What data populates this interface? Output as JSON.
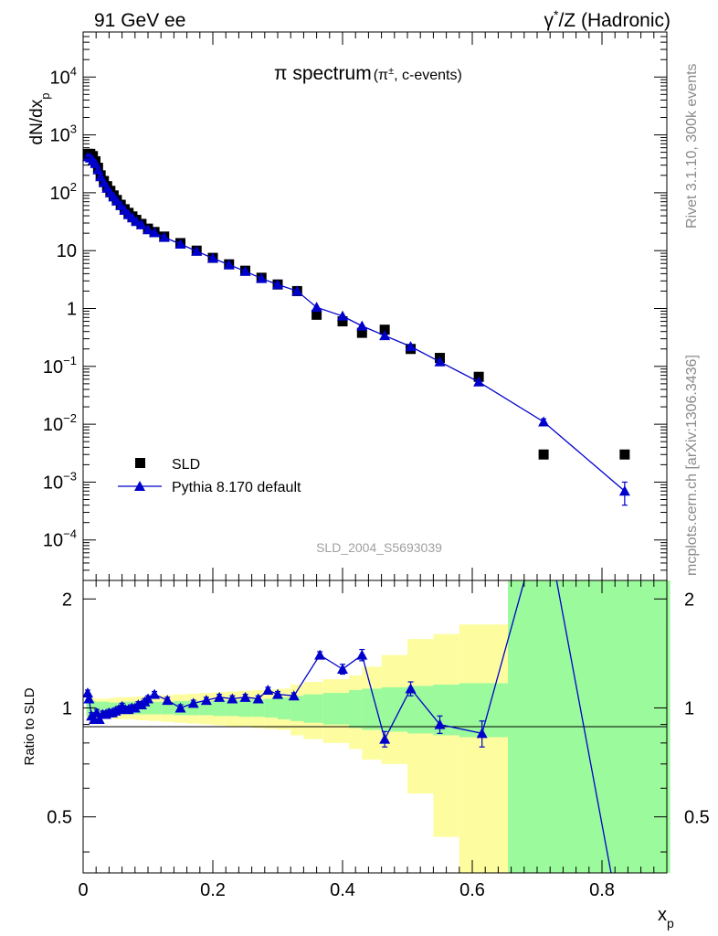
{
  "header": {
    "left": "91 GeV ee",
    "right_prefix": "γ",
    "right_sup": "*",
    "right_suffix": "/Z (Hadronic)"
  },
  "side": {
    "rivet": "Rivet 3.1.10,  300k events",
    "mcplots": "mcplots.cern.ch [arXiv:1306.3436]"
  },
  "chart_data": [
    {
      "type": "scatter",
      "panel": "main",
      "title_main": "π spectrum",
      "title_paren_open": "(π",
      "title_sup": "±",
      "title_paren_close": ", c-events)",
      "ylabel_main": "dN/dx",
      "ylabel_sub": "p",
      "yscale": "log",
      "ylim": [
        2e-05,
        60000
      ],
      "xlim": [
        0,
        0.9
      ],
      "watermark": "SLD_2004_S5693039",
      "legend_placement": "bottom-left",
      "yticks": [
        {
          "v": 10000,
          "base": "10",
          "exp": "4"
        },
        {
          "v": 1000,
          "base": "10",
          "exp": "3"
        },
        {
          "v": 100,
          "base": "10",
          "exp": "2"
        },
        {
          "v": 10,
          "base": "10",
          "exp": ""
        },
        {
          "v": 1,
          "base": "1",
          "exp": ""
        },
        {
          "v": 0.1,
          "base": "10",
          "exp": "−1"
        },
        {
          "v": 0.01,
          "base": "10",
          "exp": "−2"
        },
        {
          "v": 0.001,
          "base": "10",
          "exp": "−3"
        },
        {
          "v": 0.0001,
          "base": "10",
          "exp": "−4"
        }
      ],
      "series": [
        {
          "name": "SLD",
          "color": "#000000",
          "marker": "square",
          "x": [
            0.007,
            0.011,
            0.015,
            0.019,
            0.023,
            0.027,
            0.032,
            0.037,
            0.042,
            0.047,
            0.052,
            0.058,
            0.064,
            0.07,
            0.076,
            0.082,
            0.09,
            0.1,
            0.11,
            0.125,
            0.15,
            0.175,
            0.2,
            0.225,
            0.25,
            0.275,
            0.3,
            0.33,
            0.36,
            0.4,
            0.43,
            0.465,
            0.505,
            0.55,
            0.61,
            0.71,
            0.835
          ],
          "y": [
            470,
            470,
            430,
            350,
            270,
            200,
            160,
            130,
            108,
            90,
            75,
            62,
            52,
            45,
            39,
            34,
            29,
            24,
            21,
            17.5,
            13.5,
            10,
            7.5,
            5.8,
            4.5,
            3.4,
            2.6,
            2.0,
            0.78,
            0.6,
            0.38,
            0.43,
            0.2,
            0.14,
            0.066,
            0.003,
            0.003
          ]
        },
        {
          "name": "Pythia 8.170 default",
          "color": "#0000cc",
          "marker": "triangle",
          "x": [
            0.007,
            0.011,
            0.015,
            0.019,
            0.023,
            0.027,
            0.032,
            0.037,
            0.042,
            0.047,
            0.052,
            0.058,
            0.064,
            0.07,
            0.076,
            0.082,
            0.09,
            0.1,
            0.11,
            0.125,
            0.15,
            0.175,
            0.2,
            0.225,
            0.25,
            0.275,
            0.3,
            0.33,
            0.36,
            0.4,
            0.43,
            0.465,
            0.505,
            0.55,
            0.61,
            0.71,
            0.835
          ],
          "y": [
            420,
            400,
            360,
            320,
            250,
            190,
            150,
            120,
            100,
            85,
            72,
            60,
            50,
            42,
            37,
            32,
            28,
            23,
            20.5,
            17,
            13,
            9.8,
            7.4,
            5.7,
            4.4,
            3.3,
            2.6,
            2.0,
            1.05,
            0.74,
            0.5,
            0.34,
            0.22,
            0.12,
            0.054,
            0.011,
            0.0007
          ],
          "yerr": [
            0,
            0,
            0,
            0,
            0,
            0,
            0,
            0,
            0,
            0,
            0,
            0,
            0,
            0,
            0,
            0,
            0,
            0,
            0,
            0,
            0,
            0,
            0,
            0,
            0,
            0,
            0,
            0,
            0,
            0,
            0,
            0,
            0,
            0,
            0,
            0.0014,
            0.0003
          ]
        }
      ]
    },
    {
      "type": "line",
      "panel": "ratio",
      "ylabel": "Ratio to SLD",
      "xlabel_main": "x",
      "xlabel_sub": "p",
      "xlim": [
        0,
        0.9
      ],
      "ylim": [
        0.35,
        2.25
      ],
      "yticks": [
        0.5,
        1,
        2
      ],
      "ytick_labels": [
        "0.5",
        "1",
        "2"
      ],
      "xticks": [
        0,
        0.2,
        0.4,
        0.6,
        0.8
      ],
      "xtick_labels": [
        "0",
        "0.2",
        "0.4",
        "0.6",
        "0.8"
      ],
      "bands": {
        "edges": [
          0.005,
          0.01,
          0.02,
          0.03,
          0.04,
          0.05,
          0.06,
          0.08,
          0.1,
          0.12,
          0.14,
          0.16,
          0.18,
          0.2,
          0.22,
          0.24,
          0.26,
          0.28,
          0.3,
          0.32,
          0.34,
          0.37,
          0.41,
          0.43,
          0.46,
          0.5,
          0.54,
          0.58,
          0.655,
          0.905
        ],
        "stat_color": "#9bfa9b",
        "total_color": "#fdfda0",
        "stat_lo": [
          0.95,
          0.955,
          0.96,
          0.96,
          0.965,
          0.965,
          0.96,
          0.96,
          0.96,
          0.96,
          0.955,
          0.955,
          0.955,
          0.95,
          0.95,
          0.945,
          0.945,
          0.94,
          0.93,
          0.92,
          0.91,
          0.9,
          0.88,
          0.87,
          0.86,
          0.85,
          0.84,
          0.83,
          0.35
        ],
        "stat_hi": [
          1.05,
          1.045,
          1.04,
          1.04,
          1.035,
          1.035,
          1.04,
          1.04,
          1.04,
          1.04,
          1.045,
          1.045,
          1.045,
          1.05,
          1.05,
          1.055,
          1.055,
          1.06,
          1.07,
          1.08,
          1.09,
          1.1,
          1.12,
          1.13,
          1.14,
          1.15,
          1.16,
          1.17,
          2.25
        ],
        "total_lo": [
          0.93,
          0.935,
          0.94,
          0.94,
          0.935,
          0.93,
          0.93,
          0.925,
          0.92,
          0.915,
          0.91,
          0.905,
          0.9,
          0.895,
          0.89,
          0.885,
          0.88,
          0.875,
          0.87,
          0.84,
          0.82,
          0.8,
          0.77,
          0.72,
          0.7,
          0.58,
          0.44,
          0.35,
          0.35
        ],
        "total_hi": [
          1.07,
          1.065,
          1.06,
          1.06,
          1.065,
          1.07,
          1.07,
          1.075,
          1.08,
          1.085,
          1.09,
          1.095,
          1.1,
          1.105,
          1.11,
          1.115,
          1.12,
          1.125,
          1.13,
          1.16,
          1.18,
          1.2,
          1.23,
          1.3,
          1.4,
          1.55,
          1.6,
          1.7,
          1.7
        ]
      },
      "series": [
        {
          "name": "Pythia 8.170 default",
          "color": "#0000cc",
          "x": [
            0.007,
            0.009,
            0.013,
            0.017,
            0.021,
            0.025,
            0.03,
            0.035,
            0.04,
            0.045,
            0.05,
            0.055,
            0.06,
            0.065,
            0.07,
            0.075,
            0.08,
            0.085,
            0.09,
            0.095,
            0.1,
            0.11,
            0.13,
            0.15,
            0.17,
            0.19,
            0.21,
            0.23,
            0.25,
            0.27,
            0.285,
            0.3,
            0.325,
            0.365,
            0.4,
            0.43,
            0.465,
            0.505,
            0.55,
            0.615,
            0.71,
            0.835
          ],
          "y": [
            1.1,
            1.06,
            0.95,
            0.93,
            0.97,
            0.93,
            0.96,
            0.96,
            0.97,
            0.97,
            0.98,
            0.99,
            1.01,
            0.99,
            0.99,
            1.0,
            1.0,
            1.02,
            1.02,
            1.04,
            1.06,
            1.09,
            1.05,
            1.0,
            1.03,
            1.05,
            1.07,
            1.06,
            1.07,
            1.06,
            1.12,
            1.09,
            1.08,
            1.4,
            1.28,
            1.4,
            0.82,
            1.13,
            0.9,
            0.85,
            3.5,
            0.22
          ],
          "yerr": [
            0.02,
            0.02,
            0.02,
            0.02,
            0.02,
            0.02,
            0.02,
            0.02,
            0.02,
            0.02,
            0.02,
            0.02,
            0.02,
            0.02,
            0.02,
            0.02,
            0.02,
            0.02,
            0.02,
            0.02,
            0.02,
            0.02,
            0.02,
            0.02,
            0.02,
            0.02,
            0.02,
            0.02,
            0.02,
            0.02,
            0.02,
            0.02,
            0.02,
            0.03,
            0.04,
            0.05,
            0.04,
            0.05,
            0.05,
            0.07,
            0,
            0
          ]
        }
      ]
    }
  ]
}
